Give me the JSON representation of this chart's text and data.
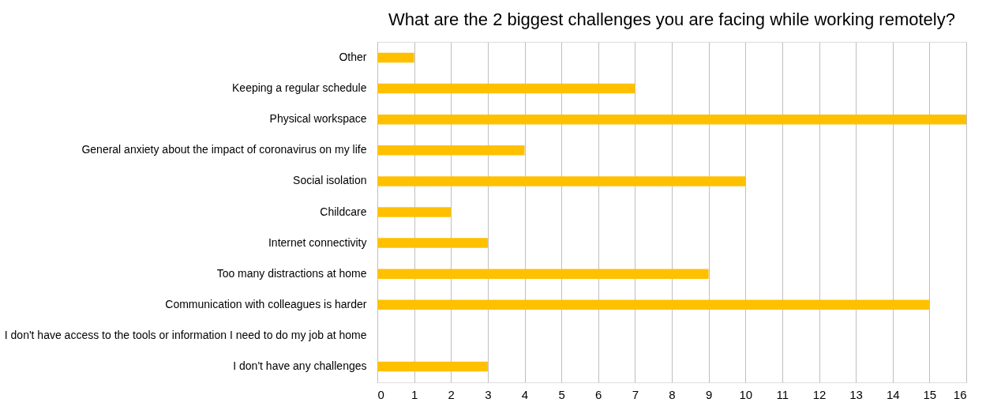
{
  "chart_data": {
    "type": "bar",
    "orientation": "horizontal",
    "title": "What are the 2 biggest challenges you are facing while working remotely?",
    "categories": [
      "Other",
      "Keeping a regular schedule",
      "Physical workspace",
      "General anxiety about the impact of coronavirus on my life",
      "Social isolation",
      "Childcare",
      "Internet connectivity",
      "Too many distractions at home",
      "Communication with colleagues is harder",
      "I don't have access to the tools or information I need to do my job at home",
      "I don't have any challenges"
    ],
    "values": [
      1,
      7,
      16,
      4,
      10,
      2,
      3,
      9,
      15,
      0,
      3
    ],
    "color": "#ffc000",
    "xlim": [
      0,
      16
    ],
    "xticks": [
      0,
      1,
      2,
      3,
      4,
      5,
      6,
      7,
      8,
      9,
      10,
      11,
      12,
      13,
      14,
      15,
      16
    ],
    "grid": "x"
  }
}
